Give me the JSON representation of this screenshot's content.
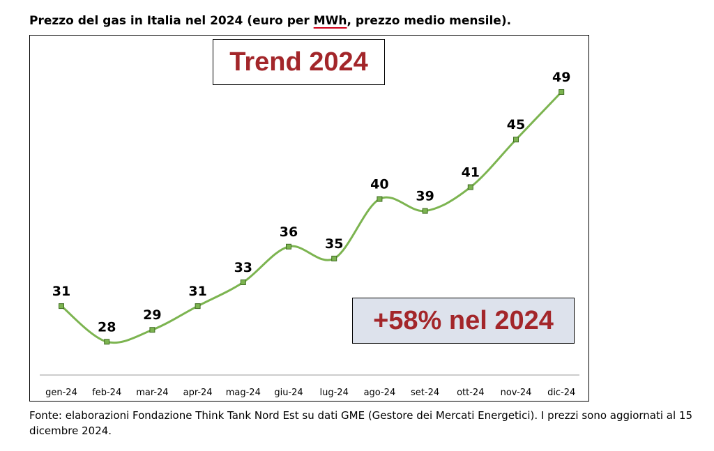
{
  "title": {
    "before": "Prezzo del gas in Italia nel 2024 (euro per ",
    "underlined": "MWh",
    "after": ", prezzo medio mensile)."
  },
  "annotations": {
    "trend": "Trend 2024",
    "change": "+58% nel 2024"
  },
  "source": "Fonte: elaborazioni Fondazione Think Tank Nord Est su dati GME (Gestore dei Mercati Energetici). I prezzi sono aggiornati al 15 dicembre 2024.",
  "colors": {
    "line": "#7cb450",
    "marker_fill": "#7cb450",
    "marker_stroke": "#3f6b22",
    "annotation_text": "#a3262a",
    "change_box_bg": "#dde2ec",
    "title_underline": "#d0021b"
  },
  "chart_data": {
    "type": "line",
    "categories": [
      "gen-24",
      "feb-24",
      "mar-24",
      "apr-24",
      "mag-24",
      "giu-24",
      "lug-24",
      "ago-24",
      "set-24",
      "ott-24",
      "nov-24",
      "dic-24"
    ],
    "series": [
      {
        "values": [
          31,
          28,
          29,
          31,
          33,
          36,
          35,
          40,
          39,
          41,
          45,
          49
        ]
      }
    ],
    "title": "Prezzo del gas in Italia nel 2024 (euro per MWh, prezzo medio mensile).",
    "xlabel": "",
    "ylabel": "",
    "ylim": [
      23,
      52
    ],
    "grid": false,
    "legend": "none",
    "data_labels": true
  }
}
